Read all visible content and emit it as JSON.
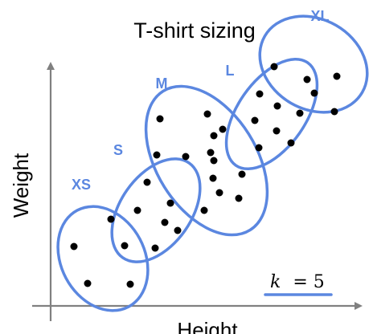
{
  "title": "T-shirt sizing",
  "x_axis_label": "Height",
  "y_axis_label": "Weight",
  "k_annotation": {
    "variable": "k",
    "equals": "= 5"
  },
  "colors": {
    "cluster_outline": "#5b87e0",
    "cluster_label": "#5b87e0",
    "points": "#000000",
    "axis": "#808080"
  },
  "clusters": [
    {
      "id": "xs",
      "label": "XS"
    },
    {
      "id": "s",
      "label": "S"
    },
    {
      "id": "m",
      "label": "M"
    },
    {
      "id": "l",
      "label": "L"
    },
    {
      "id": "xl",
      "label": "XL"
    }
  ]
}
